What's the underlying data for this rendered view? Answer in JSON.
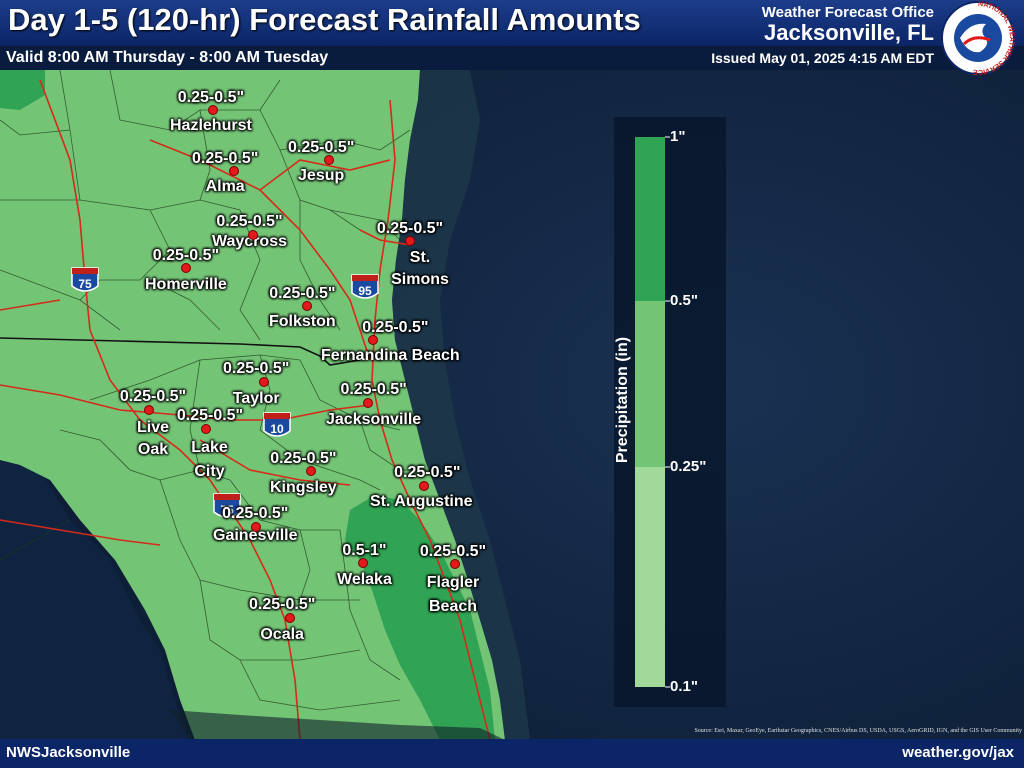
{
  "header": {
    "title": "Day 1-5 (120-hr) Forecast Rainfall Amounts",
    "valid": "Valid 8:00 AM Thursday - 8:00 AM Tuesday",
    "office_label": "Weather Forecast Office",
    "office_name": "Jacksonville, FL",
    "issued": "Issued May 01, 2025 4:15 AM EDT",
    "logo_text": "NATIONAL WEATHER SERVICE"
  },
  "footer": {
    "left": "NWSJacksonville",
    "right": "weather.gov/jax",
    "credits": "Source: Esri, Maxar, GeoEye, Earthstar Geographics, CNES/Airbus DS, USDA, USGS, AeroGRID, IGN, and the GIS User Community"
  },
  "highways": [
    "75",
    "95",
    "10",
    "75"
  ],
  "legend": {
    "title": "Precipitation (in)",
    "ticks": [
      "1\"",
      "0.5\"",
      "0.25\"",
      "0.1\""
    ],
    "colors": [
      "#31a354",
      "#74c476",
      "#a1d99b"
    ]
  },
  "cities": [
    {
      "name": "Hazlehurst",
      "amount": "0.25-0.5\""
    },
    {
      "name": "Alma",
      "amount": "0.25-0.5\""
    },
    {
      "name": "Jesup",
      "amount": "0.25-0.5\""
    },
    {
      "name": "Waycross",
      "amount": "0.25-0.5\""
    },
    {
      "name": "Homerville",
      "amount": "0.25-0.5\""
    },
    {
      "name": "St. Simons",
      "amount": "0.25-0.5\""
    },
    {
      "name": "Folkston",
      "amount": "0.25-0.5\""
    },
    {
      "name": "Fernandina Beach",
      "amount": "0.25-0.5\""
    },
    {
      "name": "Taylor",
      "amount": "0.25-0.5\""
    },
    {
      "name": "Jacksonville",
      "amount": "0.25-0.5\""
    },
    {
      "name": "Live Oak",
      "amount": "0.25-0.5\""
    },
    {
      "name": "Lake City",
      "amount": "0.25-0.5\""
    },
    {
      "name": "Kingsley",
      "amount": "0.25-0.5\""
    },
    {
      "name": "St. Augustine",
      "amount": "0.25-0.5\""
    },
    {
      "name": "Gainesville",
      "amount": "0.25-0.5\""
    },
    {
      "name": "Welaka",
      "amount": "0.5-1\""
    },
    {
      "name": "Flagler Beach",
      "amount": "0.25-0.5\""
    },
    {
      "name": "Ocala",
      "amount": "0.25-0.5\""
    }
  ]
}
